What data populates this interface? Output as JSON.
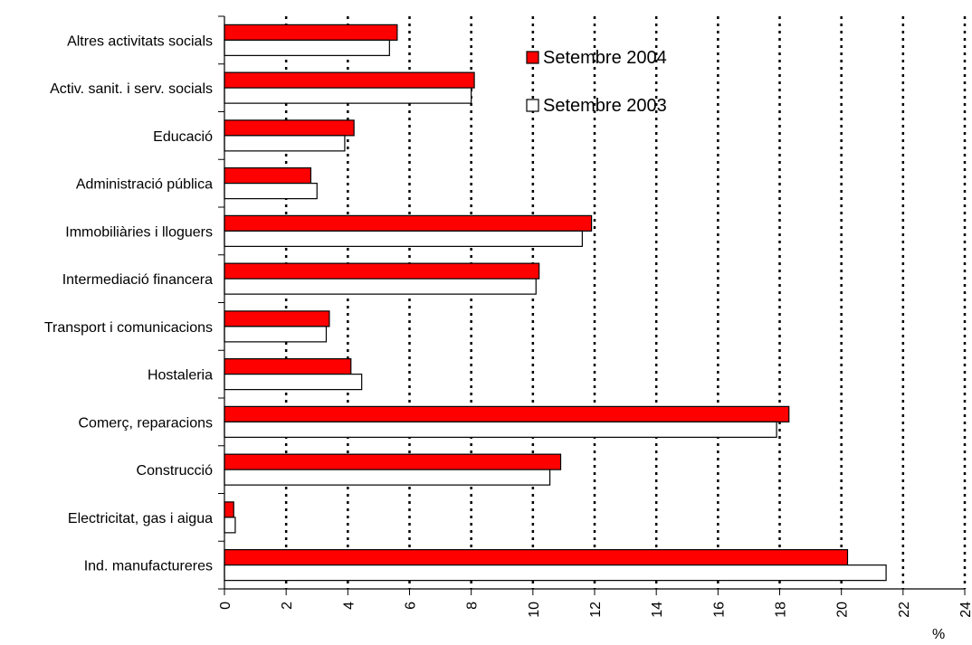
{
  "chart_data": {
    "type": "bar",
    "orientation": "horizontal",
    "categories": [
      "Altres activitats socials",
      "Activ. sanit. i serv. socials",
      "Educació",
      "Administració pública",
      "Immobiliàries i lloguers",
      "Intermediació financera",
      "Transport i comunicacions",
      "Hostaleria",
      "Comerç, reparacions",
      "Construcció",
      "Electricitat, gas i aigua",
      "Ind. manufactureres"
    ],
    "series": [
      {
        "name": "Setembre 2004",
        "color": "#ff0000",
        "values": [
          5.6,
          8.1,
          4.2,
          2.8,
          11.9,
          10.2,
          3.4,
          4.1,
          18.3,
          10.9,
          0.3,
          20.2
        ]
      },
      {
        "name": "Setembre 2003",
        "color": "#ffffff",
        "values": [
          5.35,
          8.0,
          3.9,
          3.0,
          11.6,
          10.1,
          3.3,
          4.45,
          17.9,
          10.55,
          0.35,
          21.45
        ]
      }
    ],
    "xlim": [
      0,
      24
    ],
    "xticks": [
      "0",
      "2",
      "4",
      "6",
      "8",
      "10",
      "12",
      "14",
      "16",
      "18",
      "20",
      "22",
      "24"
    ],
    "xlabel": "%",
    "grid": "vertical dotted",
    "legend_position": "top-center"
  }
}
